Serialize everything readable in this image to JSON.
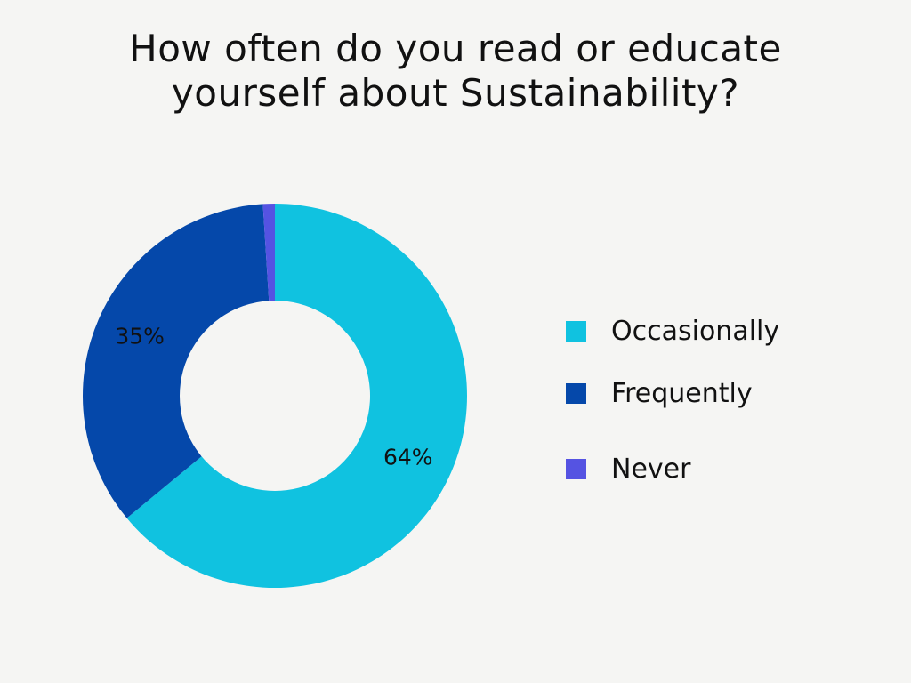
{
  "chart_data": {
    "type": "pie",
    "variant": "donut",
    "title": "How often do you read or educate yourself about Sustainability?",
    "title_lines": [
      "How often do you read or educate",
      "yourself about Sustainability?"
    ],
    "categories": [
      "Occasionally",
      "Frequently",
      "Never"
    ],
    "values": [
      64,
      35,
      1
    ],
    "data_labels": [
      "64%",
      "35%",
      ""
    ],
    "colors": [
      "#10c2e0",
      "#0548aa",
      "#5553e2"
    ],
    "legend_position": "right"
  }
}
